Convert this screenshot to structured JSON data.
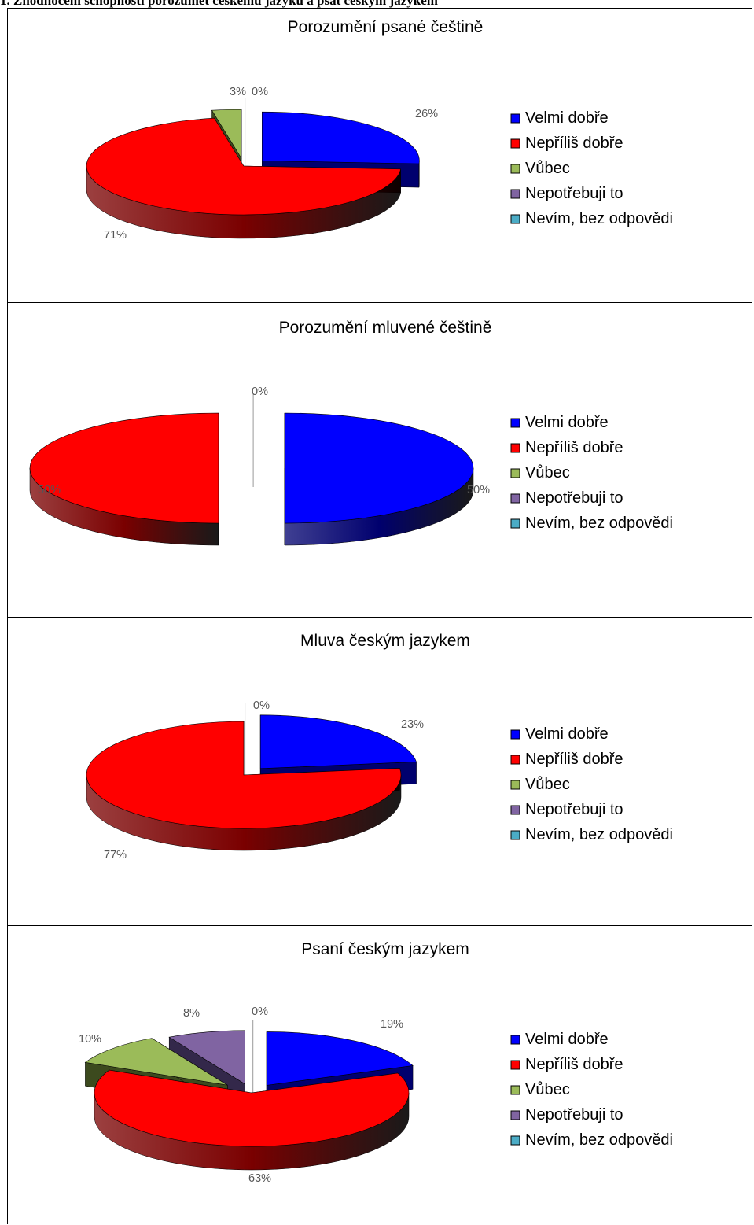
{
  "page_heading": "1. Zhodnocení schopností porozumět českému jazyku a psát českým jazykem",
  "legend": {
    "items": [
      {
        "label": "Velmi dobře",
        "color": "#0000ff"
      },
      {
        "label": "Nepříliš dobře",
        "color": "#ff0000"
      },
      {
        "label": "Vůbec",
        "color": "#9bbb59"
      },
      {
        "label": "Nepotřebuji to",
        "color": "#8064a2"
      },
      {
        "label": "Nevím, bez odpovědi",
        "color": "#4bacc6"
      }
    ]
  },
  "chart_data": [
    {
      "type": "pie",
      "title": "Porozumění psané češtině",
      "categories": [
        "Velmi dobře",
        "Nepříliš dobře",
        "Vůbec",
        "Nepotřebuji to",
        "Nevím, bez odpovědi"
      ],
      "values": [
        26,
        71,
        3,
        0,
        0
      ],
      "labels": [
        "26%",
        "71%",
        "3%",
        "0%",
        ""
      ]
    },
    {
      "type": "pie",
      "title": "Porozumění mluvené češtině",
      "categories": [
        "Velmi dobře",
        "Nepříliš dobře",
        "Vůbec",
        "Nepotřebuji to",
        "Nevím, bez odpovědi"
      ],
      "values": [
        50,
        50,
        0,
        0,
        0
      ],
      "labels": [
        "50%",
        "50%",
        "",
        "0%",
        ""
      ]
    },
    {
      "type": "pie",
      "title": "Mluva českým jazykem",
      "categories": [
        "Velmi dobře",
        "Nepříliš dobře",
        "Vůbec",
        "Nepotřebuji to",
        "Nevím, bez odpovědi"
      ],
      "values": [
        23,
        77,
        0,
        0,
        0
      ],
      "labels": [
        "23%",
        "77%",
        "",
        "0%",
        ""
      ]
    },
    {
      "type": "pie",
      "title": "Psaní českým jazykem",
      "categories": [
        "Velmi dobře",
        "Nepříliš dobře",
        "Vůbec",
        "Nepotřebuji to",
        "Nevím, bez odpovědi"
      ],
      "values": [
        19,
        63,
        10,
        8,
        0
      ],
      "labels": [
        "19%",
        "63%",
        "10%",
        "8%",
        "0%"
      ]
    }
  ]
}
